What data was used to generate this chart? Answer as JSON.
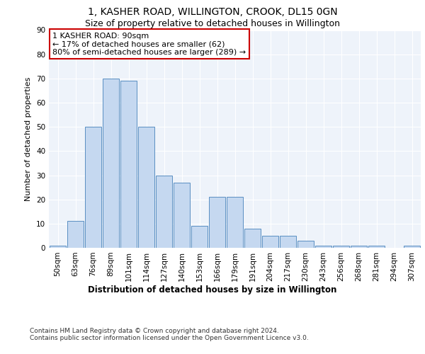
{
  "title": "1, KASHER ROAD, WILLINGTON, CROOK, DL15 0GN",
  "subtitle": "Size of property relative to detached houses in Willington",
  "xlabel": "Distribution of detached houses by size in Willington",
  "ylabel": "Number of detached properties",
  "bar_color": "#c5d8f0",
  "bar_edge_color": "#5a8fc2",
  "background_color": "#eef3fa",
  "categories": [
    "50sqm",
    "63sqm",
    "76sqm",
    "89sqm",
    "101sqm",
    "114sqm",
    "127sqm",
    "140sqm",
    "153sqm",
    "166sqm",
    "179sqm",
    "191sqm",
    "204sqm",
    "217sqm",
    "230sqm",
    "243sqm",
    "256sqm",
    "268sqm",
    "281sqm",
    "294sqm",
    "307sqm"
  ],
  "values": [
    1,
    11,
    50,
    70,
    69,
    50,
    30,
    27,
    9,
    21,
    21,
    8,
    5,
    5,
    3,
    1,
    1,
    1,
    1,
    0,
    1
  ],
  "annotation_box_text": "1 KASHER ROAD: 90sqm\n← 17% of detached houses are smaller (62)\n80% of semi-detached houses are larger (289) →",
  "annotation_box_color": "#ffffff",
  "annotation_box_edge_color": "#cc0000",
  "ylim": [
    0,
    90
  ],
  "yticks": [
    0,
    10,
    20,
    30,
    40,
    50,
    60,
    70,
    80,
    90
  ],
  "footer_text": "Contains HM Land Registry data © Crown copyright and database right 2024.\nContains public sector information licensed under the Open Government Licence v3.0.",
  "title_fontsize": 10,
  "subtitle_fontsize": 9,
  "xlabel_fontsize": 8.5,
  "ylabel_fontsize": 8,
  "tick_fontsize": 7.5,
  "annotation_fontsize": 8,
  "footer_fontsize": 6.5
}
